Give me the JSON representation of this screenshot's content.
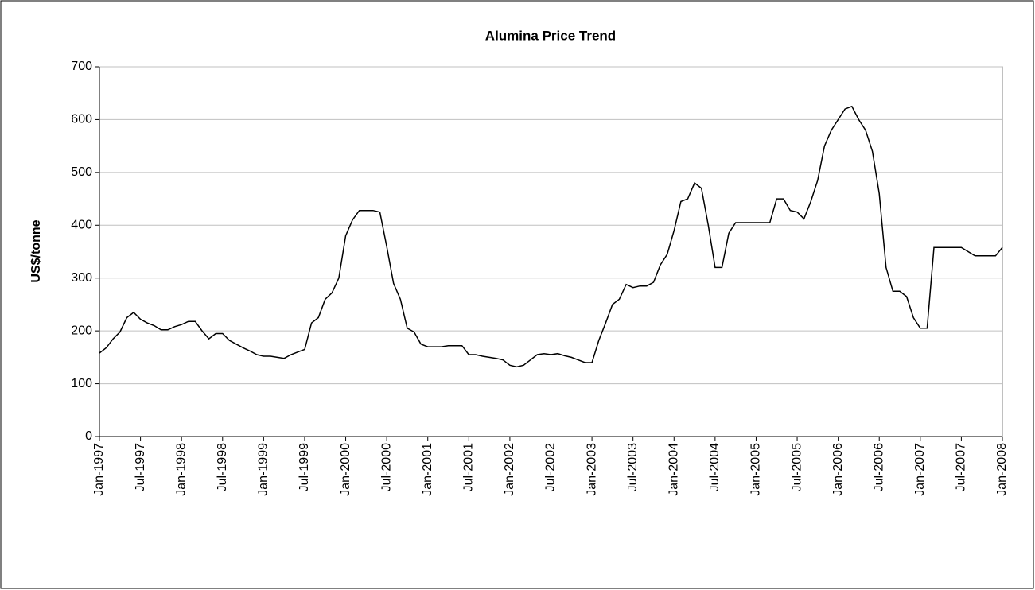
{
  "chart_data": {
    "type": "line",
    "title": "Alumina Price Trend",
    "y_label": "US$/tonne",
    "x": [
      "Jan-1997",
      "Feb-1997",
      "Mar-1997",
      "Apr-1997",
      "May-1997",
      "Jun-1997",
      "Jul-1997",
      "Aug-1997",
      "Sep-1997",
      "Oct-1997",
      "Nov-1997",
      "Dec-1997",
      "Jan-1998",
      "Feb-1998",
      "Mar-1998",
      "Apr-1998",
      "May-1998",
      "Jun-1998",
      "Jul-1998",
      "Aug-1998",
      "Sep-1998",
      "Oct-1998",
      "Nov-1998",
      "Dec-1998",
      "Jan-1999",
      "Feb-1999",
      "Mar-1999",
      "Apr-1999",
      "May-1999",
      "Jun-1999",
      "Jul-1999",
      "Aug-1999",
      "Sep-1999",
      "Oct-1999",
      "Nov-1999",
      "Dec-1999",
      "Jan-2000",
      "Feb-2000",
      "Mar-2000",
      "Apr-2000",
      "May-2000",
      "Jun-2000",
      "Jul-2000",
      "Aug-2000",
      "Sep-2000",
      "Oct-2000",
      "Nov-2000",
      "Dec-2000",
      "Jan-2001",
      "Feb-2001",
      "Mar-2001",
      "Apr-2001",
      "May-2001",
      "Jun-2001",
      "Jul-2001",
      "Aug-2001",
      "Sep-2001",
      "Oct-2001",
      "Nov-2001",
      "Dec-2001",
      "Jan-2002",
      "Feb-2002",
      "Mar-2002",
      "Apr-2002",
      "May-2002",
      "Jun-2002",
      "Jul-2002",
      "Aug-2002",
      "Sep-2002",
      "Oct-2002",
      "Nov-2002",
      "Dec-2002",
      "Jan-2003",
      "Feb-2003",
      "Mar-2003",
      "Apr-2003",
      "May-2003",
      "Jun-2003",
      "Jul-2003",
      "Aug-2003",
      "Sep-2003",
      "Oct-2003",
      "Nov-2003",
      "Dec-2003",
      "Jan-2004",
      "Feb-2004",
      "Mar-2004",
      "Apr-2004",
      "May-2004",
      "Jun-2004",
      "Jul-2004",
      "Aug-2004",
      "Sep-2004",
      "Oct-2004",
      "Nov-2004",
      "Dec-2004",
      "Jan-2005",
      "Feb-2005",
      "Mar-2005",
      "Apr-2005",
      "May-2005",
      "Jun-2005",
      "Jul-2005",
      "Aug-2005",
      "Sep-2005",
      "Oct-2005",
      "Nov-2005",
      "Dec-2005",
      "Jan-2006",
      "Feb-2006",
      "Mar-2006",
      "Apr-2006",
      "May-2006",
      "Jun-2006",
      "Jul-2006",
      "Aug-2006",
      "Sep-2006",
      "Oct-2006",
      "Nov-2006",
      "Dec-2006",
      "Jan-2007",
      "Feb-2007",
      "Mar-2007",
      "Apr-2007",
      "May-2007",
      "Jun-2007",
      "Jul-2007",
      "Aug-2007",
      "Sep-2007",
      "Oct-2007",
      "Nov-2007",
      "Dec-2007",
      "Jan-2008"
    ],
    "series": [
      {
        "name": "Alumina",
        "color": "#000000",
        "values": [
          158,
          168,
          185,
          198,
          225,
          235,
          222,
          215,
          210,
          202,
          202,
          208,
          212,
          218,
          218,
          200,
          185,
          195,
          195,
          182,
          175,
          168,
          162,
          155,
          152,
          152,
          150,
          148,
          155,
          160,
          165,
          215,
          225,
          260,
          272,
          300,
          380,
          410,
          428,
          428,
          428,
          425,
          360,
          290,
          260,
          205,
          198,
          175,
          170,
          170,
          170,
          172,
          172,
          172,
          155,
          155,
          152,
          150,
          148,
          145,
          135,
          132,
          135,
          145,
          155,
          157,
          155,
          157,
          153,
          150,
          145,
          140,
          140,
          182,
          215,
          250,
          260,
          288,
          282,
          285,
          285,
          292,
          325,
          345,
          390,
          445,
          450,
          480,
          470,
          400,
          320,
          320,
          385,
          405,
          405,
          405,
          405,
          405,
          405,
          450,
          450,
          428,
          425,
          412,
          445,
          485,
          550,
          580,
          600,
          620,
          625,
          600,
          580,
          540,
          460,
          320,
          275,
          275,
          265,
          225,
          205,
          205,
          358,
          358,
          358,
          358,
          358,
          350,
          342,
          342,
          342,
          342,
          358
        ]
      }
    ],
    "xticks": [
      "Jan-1997",
      "Jul-1997",
      "Jan-1998",
      "Jul-1998",
      "Jan-1999",
      "Jul-1999",
      "Jan-2000",
      "Jul-2000",
      "Jan-2001",
      "Jul-2001",
      "Jan-2002",
      "Jul-2002",
      "Jan-2003",
      "Jul-2003",
      "Jan-2004",
      "Jul-2004",
      "Jan-2005",
      "Jul-2005",
      "Jan-2006",
      "Jul-2006",
      "Jan-2007",
      "Jul-2007",
      "Jan-2008"
    ],
    "ylim": [
      0,
      700
    ],
    "yticks": [
      0,
      100,
      200,
      300,
      400,
      500,
      600,
      700
    ],
    "grid": true
  }
}
